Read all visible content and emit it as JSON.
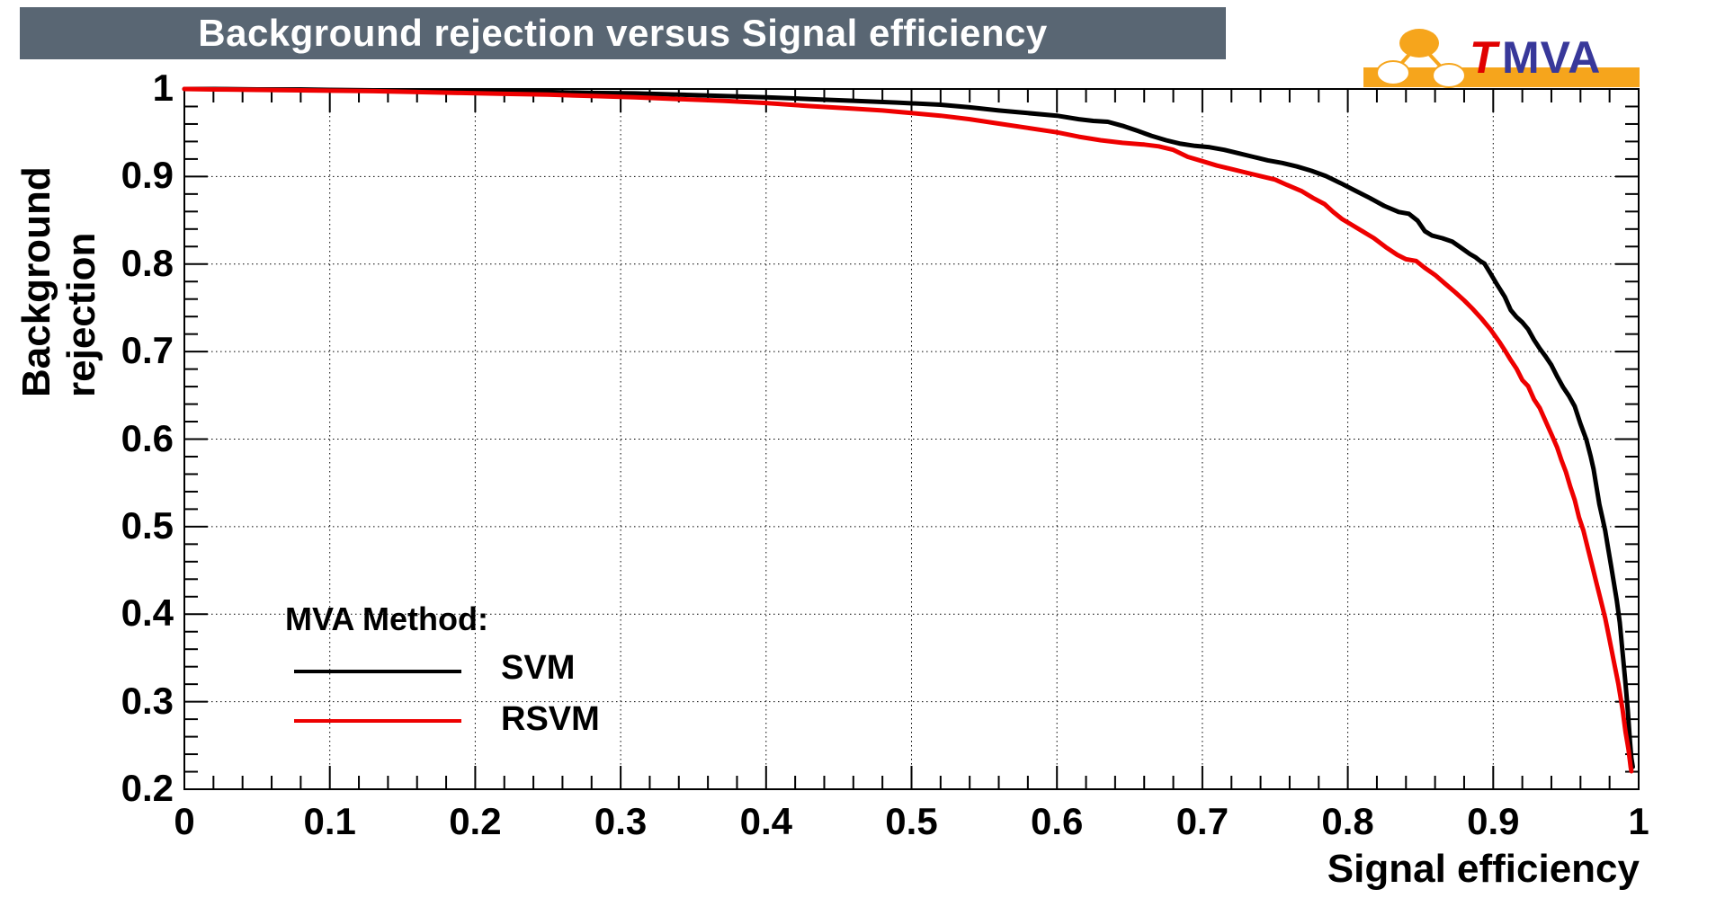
{
  "header": {
    "title": "Background rejection versus Signal efficiency"
  },
  "logo": {
    "t": "T",
    "mva": "MVA",
    "orange": "#f6a51c",
    "navy": "#38389a",
    "red": "#e00000"
  },
  "axes": {
    "x": {
      "title": "Signal efficiency",
      "min": 0,
      "max": 1,
      "major_ticks": [
        0,
        0.1,
        0.2,
        0.3,
        0.4,
        0.5,
        0.6,
        0.7,
        0.8,
        0.9,
        1
      ],
      "tick_labels": [
        "0",
        "0.1",
        "0.2",
        "0.3",
        "0.4",
        "0.5",
        "0.6",
        "0.7",
        "0.8",
        "0.9",
        "1"
      ],
      "minor_step": 0.02
    },
    "y": {
      "title": "Background rejection",
      "min": 0.2,
      "max": 1,
      "major_ticks": [
        1,
        0.9,
        0.8,
        0.7,
        0.6,
        0.5,
        0.4,
        0.3,
        0.2
      ],
      "tick_labels": [
        "1",
        "0.9",
        "0.8",
        "0.7",
        "0.6",
        "0.5",
        "0.4",
        "0.3",
        "0.2"
      ],
      "minor_step": 0.02
    }
  },
  "legend": {
    "heading": "MVA Method:",
    "entries": [
      {
        "label": "SVM",
        "color": "#000000"
      },
      {
        "label": "RSVM",
        "color": "#ee0000"
      }
    ]
  },
  "chart_data": {
    "type": "line",
    "title": "Background rejection versus Signal efficiency",
    "xlabel": "Signal efficiency",
    "ylabel": "Background rejection",
    "xlim": [
      0,
      1
    ],
    "ylim": [
      0.2,
      1
    ],
    "grid": "dotted",
    "legend_position": "inside-bottom-left",
    "series": [
      {
        "name": "SVM",
        "color": "#000000",
        "points": [
          [
            0,
            1.0
          ],
          [
            0.02,
            1.0
          ],
          [
            0.05,
            0.9995
          ],
          [
            0.08,
            0.9995
          ],
          [
            0.1,
            0.999
          ],
          [
            0.13,
            0.9985
          ],
          [
            0.16,
            0.998
          ],
          [
            0.19,
            0.9975
          ],
          [
            0.22,
            0.997
          ],
          [
            0.25,
            0.9965
          ],
          [
            0.28,
            0.9955
          ],
          [
            0.31,
            0.995
          ],
          [
            0.34,
            0.9935
          ],
          [
            0.37,
            0.992
          ],
          [
            0.4,
            0.9905
          ],
          [
            0.43,
            0.9885
          ],
          [
            0.46,
            0.9865
          ],
          [
            0.49,
            0.9845
          ],
          [
            0.52,
            0.982
          ],
          [
            0.54,
            0.979
          ],
          [
            0.56,
            0.9755
          ],
          [
            0.58,
            0.9725
          ],
          [
            0.6,
            0.9695
          ],
          [
            0.615,
            0.9655
          ],
          [
            0.625,
            0.9635
          ],
          [
            0.635,
            0.9625
          ],
          [
            0.645,
            0.958
          ],
          [
            0.655,
            0.9525
          ],
          [
            0.665,
            0.9465
          ],
          [
            0.675,
            0.9415
          ],
          [
            0.685,
            0.9375
          ],
          [
            0.695,
            0.935
          ],
          [
            0.705,
            0.9335
          ],
          [
            0.715,
            0.9305
          ],
          [
            0.725,
            0.9265
          ],
          [
            0.735,
            0.9225
          ],
          [
            0.745,
            0.9185
          ],
          [
            0.755,
            0.9155
          ],
          [
            0.765,
            0.9115
          ],
          [
            0.775,
            0.9065
          ],
          [
            0.785,
            0.9005
          ],
          [
            0.795,
            0.8925
          ],
          [
            0.805,
            0.884
          ],
          [
            0.815,
            0.8755
          ],
          [
            0.825,
            0.8665
          ],
          [
            0.835,
            0.8595
          ],
          [
            0.842,
            0.8575
          ],
          [
            0.848,
            0.8495
          ],
          [
            0.853,
            0.8375
          ],
          [
            0.858,
            0.8325
          ],
          [
            0.865,
            0.8295
          ],
          [
            0.872,
            0.8255
          ],
          [
            0.878,
            0.8185
          ],
          [
            0.884,
            0.8115
          ],
          [
            0.888,
            0.8075
          ],
          [
            0.891,
            0.8035
          ],
          [
            0.894,
            0.8005
          ],
          [
            0.898,
            0.7895
          ],
          [
            0.903,
            0.7755
          ],
          [
            0.908,
            0.7625
          ],
          [
            0.912,
            0.7475
          ],
          [
            0.916,
            0.7395
          ],
          [
            0.92,
            0.7335
          ],
          [
            0.924,
            0.7255
          ],
          [
            0.928,
            0.7135
          ],
          [
            0.932,
            0.7035
          ],
          [
            0.936,
            0.6945
          ],
          [
            0.94,
            0.6845
          ],
          [
            0.944,
            0.6715
          ],
          [
            0.948,
            0.6595
          ],
          [
            0.952,
            0.6495
          ],
          [
            0.956,
            0.6375
          ],
          [
            0.96,
            0.6175
          ],
          [
            0.964,
            0.5995
          ],
          [
            0.967,
            0.5805
          ],
          [
            0.969,
            0.5655
          ],
          [
            0.971,
            0.5455
          ],
          [
            0.973,
            0.5255
          ],
          [
            0.975,
            0.5105
          ],
          [
            0.977,
            0.4955
          ],
          [
            0.979,
            0.4755
          ],
          [
            0.981,
            0.4555
          ],
          [
            0.983,
            0.4355
          ],
          [
            0.985,
            0.4155
          ],
          [
            0.987,
            0.3905
          ],
          [
            0.989,
            0.3555
          ],
          [
            0.991,
            0.3205
          ],
          [
            0.9925,
            0.2905
          ],
          [
            0.994,
            0.2555
          ],
          [
            0.995,
            0.2355
          ],
          [
            0.996,
            0.2255
          ]
        ]
      },
      {
        "name": "RSVM",
        "color": "#ee0000",
        "points": [
          [
            0,
            1.0
          ],
          [
            0.02,
            0.9995
          ],
          [
            0.05,
            0.999
          ],
          [
            0.08,
            0.9985
          ],
          [
            0.1,
            0.998
          ],
          [
            0.13,
            0.9975
          ],
          [
            0.16,
            0.9965
          ],
          [
            0.19,
            0.9955
          ],
          [
            0.22,
            0.9945
          ],
          [
            0.25,
            0.9935
          ],
          [
            0.28,
            0.992
          ],
          [
            0.31,
            0.9905
          ],
          [
            0.34,
            0.9885
          ],
          [
            0.37,
            0.9865
          ],
          [
            0.4,
            0.984
          ],
          [
            0.43,
            0.9805
          ],
          [
            0.46,
            0.9775
          ],
          [
            0.48,
            0.9755
          ],
          [
            0.5,
            0.9725
          ],
          [
            0.52,
            0.9695
          ],
          [
            0.54,
            0.9655
          ],
          [
            0.56,
            0.9605
          ],
          [
            0.58,
            0.9555
          ],
          [
            0.6,
            0.9505
          ],
          [
            0.615,
            0.9455
          ],
          [
            0.63,
            0.9415
          ],
          [
            0.645,
            0.9385
          ],
          [
            0.66,
            0.9365
          ],
          [
            0.67,
            0.9345
          ],
          [
            0.68,
            0.9305
          ],
          [
            0.69,
            0.9225
          ],
          [
            0.7,
            0.9175
          ],
          [
            0.71,
            0.9125
          ],
          [
            0.72,
            0.9085
          ],
          [
            0.73,
            0.9045
          ],
          [
            0.74,
            0.9005
          ],
          [
            0.75,
            0.8965
          ],
          [
            0.758,
            0.8905
          ],
          [
            0.768,
            0.8835
          ],
          [
            0.776,
            0.8755
          ],
          [
            0.784,
            0.8685
          ],
          [
            0.79,
            0.8595
          ],
          [
            0.796,
            0.8515
          ],
          [
            0.802,
            0.8455
          ],
          [
            0.81,
            0.8375
          ],
          [
            0.818,
            0.8295
          ],
          [
            0.826,
            0.8195
          ],
          [
            0.834,
            0.8105
          ],
          [
            0.84,
            0.8055
          ],
          [
            0.847,
            0.8035
          ],
          [
            0.853,
            0.7955
          ],
          [
            0.86,
            0.7875
          ],
          [
            0.867,
            0.7775
          ],
          [
            0.874,
            0.7675
          ],
          [
            0.88,
            0.7585
          ],
          [
            0.886,
            0.7485
          ],
          [
            0.892,
            0.7375
          ],
          [
            0.898,
            0.7255
          ],
          [
            0.904,
            0.7115
          ],
          [
            0.908,
            0.7015
          ],
          [
            0.912,
            0.6905
          ],
          [
            0.916,
            0.6805
          ],
          [
            0.92,
            0.6675
          ],
          [
            0.924,
            0.6605
          ],
          [
            0.928,
            0.6455
          ],
          [
            0.932,
            0.6355
          ],
          [
            0.936,
            0.6205
          ],
          [
            0.94,
            0.6055
          ],
          [
            0.944,
            0.5905
          ],
          [
            0.947,
            0.5755
          ],
          [
            0.95,
            0.5625
          ],
          [
            0.953,
            0.5455
          ],
          [
            0.956,
            0.5305
          ],
          [
            0.959,
            0.5105
          ],
          [
            0.962,
            0.4955
          ],
          [
            0.965,
            0.4755
          ],
          [
            0.968,
            0.4555
          ],
          [
            0.971,
            0.4355
          ],
          [
            0.974,
            0.4155
          ],
          [
            0.977,
            0.3955
          ],
          [
            0.98,
            0.3705
          ],
          [
            0.983,
            0.3455
          ],
          [
            0.986,
            0.3205
          ],
          [
            0.989,
            0.2905
          ],
          [
            0.991,
            0.2655
          ],
          [
            0.993,
            0.2455
          ],
          [
            0.9945,
            0.2255
          ],
          [
            0.995,
            0.2205
          ]
        ]
      }
    ]
  }
}
